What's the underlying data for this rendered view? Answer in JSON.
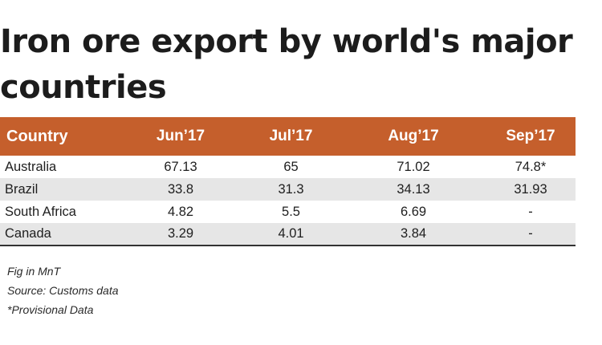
{
  "chart_data": {
    "type": "table",
    "title": "Iron ore export by world's major countries",
    "columns": [
      "Country",
      "Jun’17",
      "Jul’17",
      "Aug’17",
      "Sep’17"
    ],
    "rows": [
      [
        "Australia",
        "67.13",
        "65",
        "71.02",
        "74.8*"
      ],
      [
        "Brazil",
        "33.8",
        "31.3",
        "34.13",
        "31.93"
      ],
      [
        "South Africa",
        "4.82",
        "5.5",
        "6.69",
        "-"
      ],
      [
        "Canada",
        "3.29",
        "4.01",
        "3.84",
        "-"
      ]
    ],
    "notes": [
      "Fig in MnT",
      "Source: Customs data",
      "*Provisional Data"
    ],
    "colors": {
      "header_bg": "#c55f2c",
      "header_text": "#ffffff",
      "row_alt_bg": "#e6e6e6"
    }
  }
}
